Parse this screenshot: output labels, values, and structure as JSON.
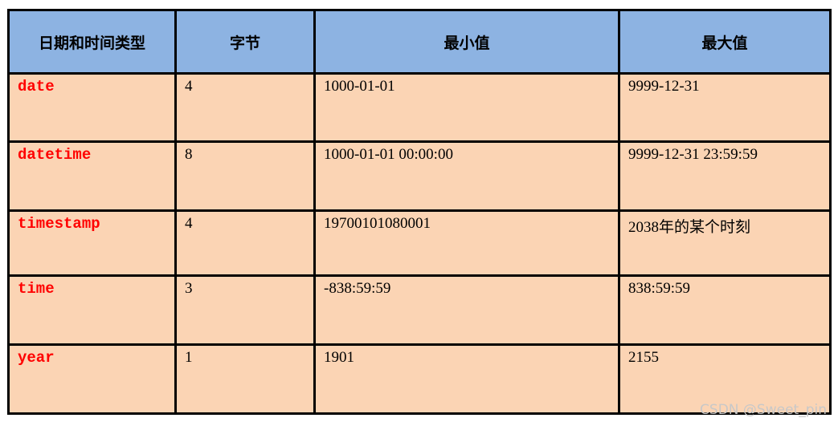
{
  "headers": [
    "日期和时间类型",
    "字节",
    "最小值",
    "最大值"
  ],
  "rows": [
    [
      "date",
      "4",
      "1000-01-01",
      "9999-12-31"
    ],
    [
      "datetime",
      "8",
      "1000-01-01 00:00:00",
      "9999-12-31 23:59:59"
    ],
    [
      "timestamp",
      "4",
      "19700101080001",
      "2038年的某个时刻"
    ],
    [
      "time",
      "3",
      "-838:59:59",
      "838:59:59"
    ],
    [
      "year",
      "1",
      "1901",
      "2155"
    ]
  ],
  "colors": {
    "header_bg": "#8db3e2",
    "body_bg": "#fbd4b4",
    "type_text": "#ff0000"
  },
  "watermark": "CSDN @Sweet_pin"
}
